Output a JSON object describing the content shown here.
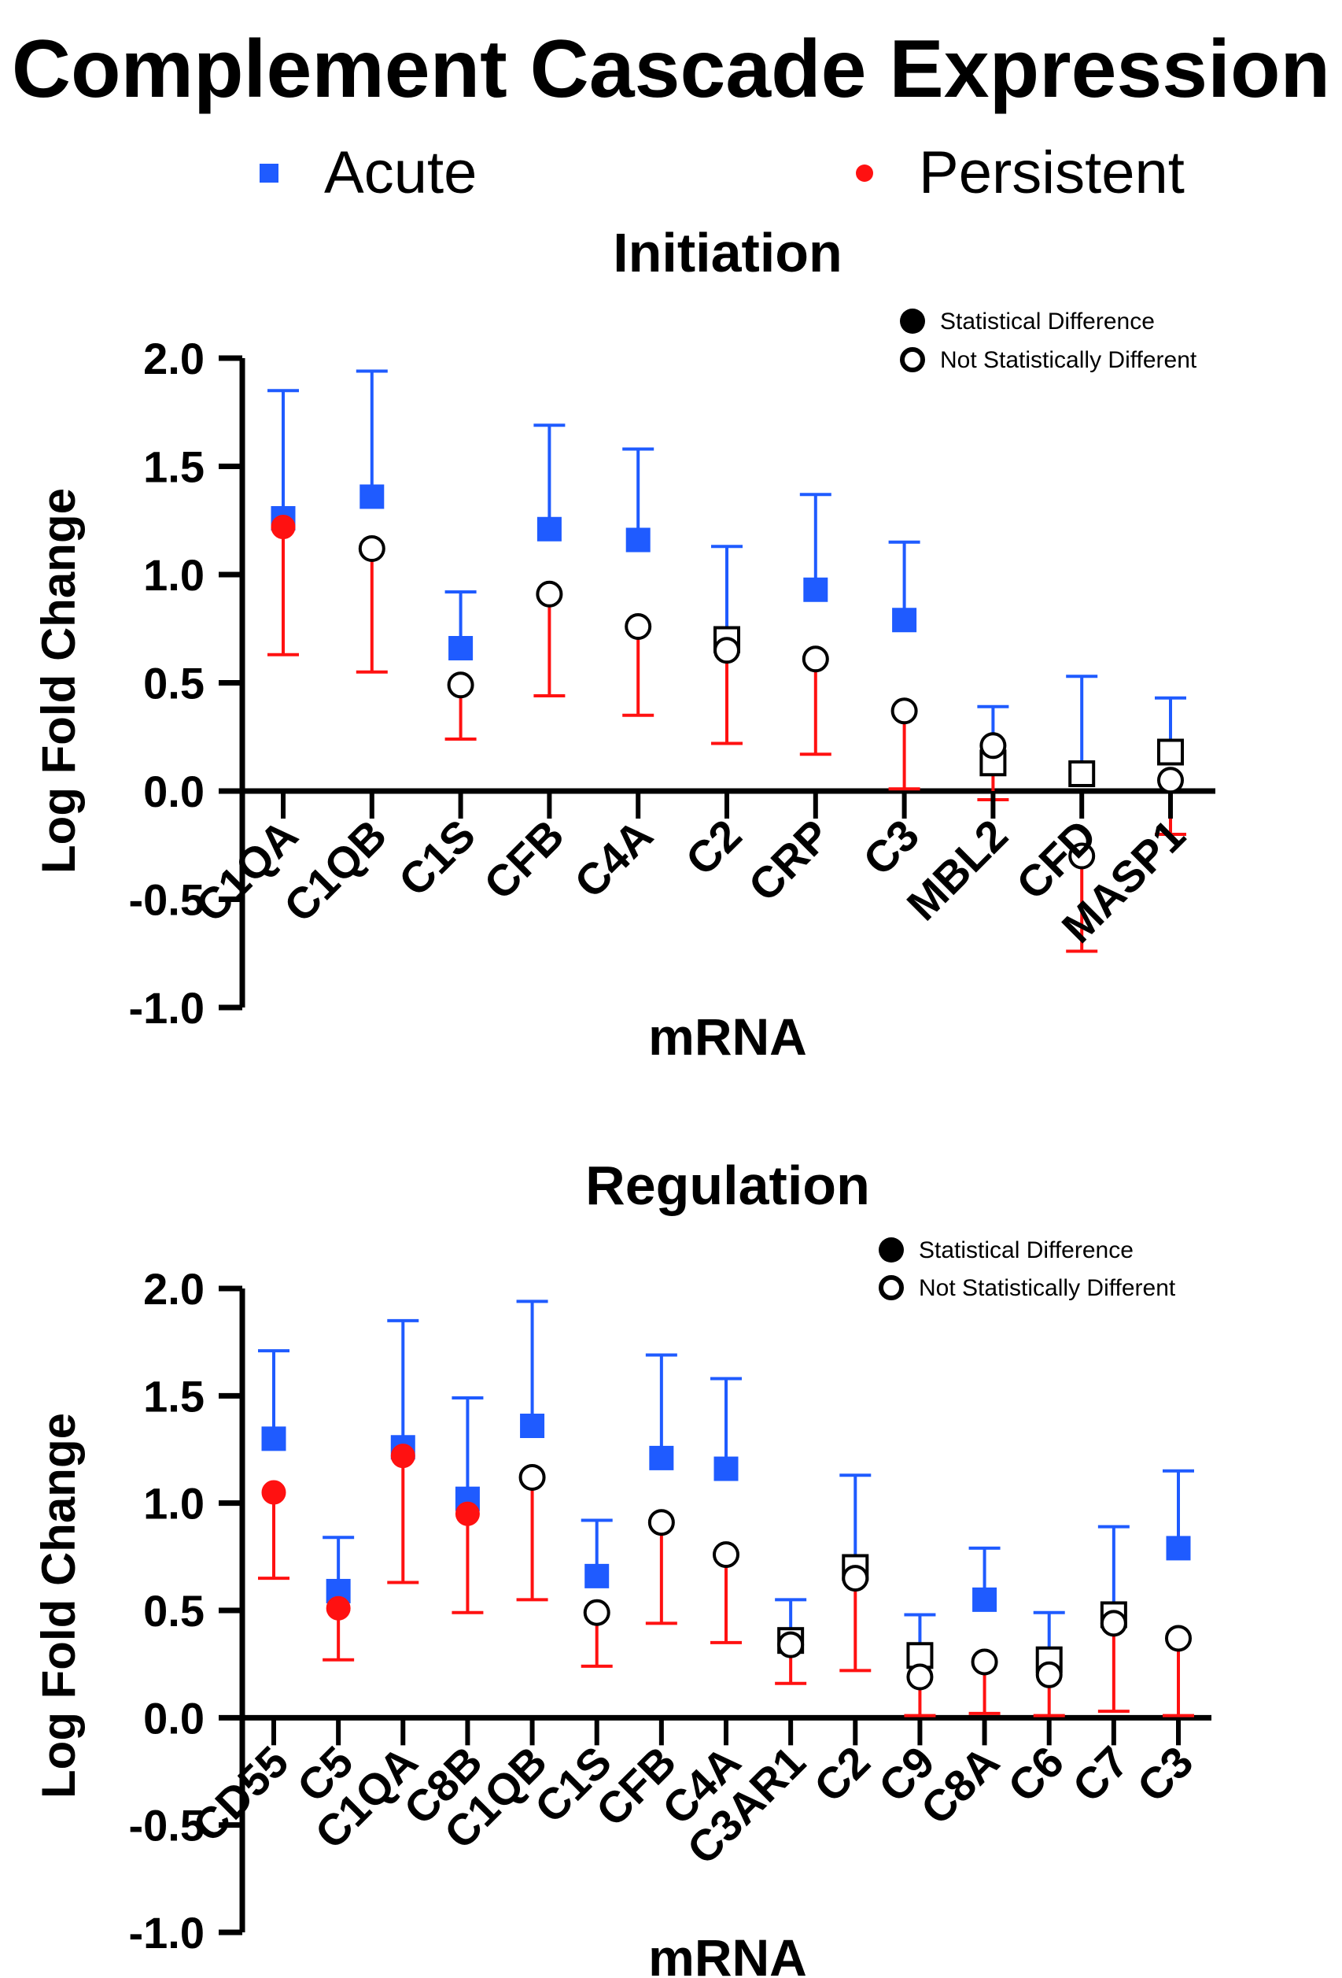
{
  "figure_title": "Complement Cascade Expression",
  "legend": {
    "acute_label": "Acute",
    "persistent_label": "Persistent",
    "acute_color": "#1f5bff",
    "persistent_color": "#ff1111",
    "acute_marker": "filled-square-icon",
    "persistent_marker": "filled-circle-icon"
  },
  "chart_data": [
    {
      "type": "scatter",
      "title": "Initiation",
      "xlabel": "mRNA",
      "ylabel": "Log Fold Change",
      "ylim": [
        -1.0,
        2.0
      ],
      "yticks": [
        2.0,
        1.5,
        1.0,
        0.5,
        0.0,
        -0.5,
        -1.0
      ],
      "ytick_labels": [
        "2.0",
        "1.5",
        "1.0",
        "0.5",
        "0.0",
        "-0.5",
        "-1.0"
      ],
      "marker_legend": {
        "filled": "Statistical Difference",
        "open": "Not Statistically Different"
      },
      "categories": [
        "C1QA",
        "C1QB",
        "C1S",
        "CFB",
        "C4A",
        "C2",
        "CRP",
        "C3",
        "MBL2",
        "CFD",
        "MASP1"
      ],
      "series": [
        {
          "name": "Acute",
          "color": "#1f5bff",
          "values": [
            1.26,
            1.36,
            0.66,
            1.21,
            1.16,
            0.7,
            0.93,
            0.79,
            0.13,
            0.08,
            0.18
          ],
          "err_upper": [
            1.85,
            1.94,
            0.92,
            1.69,
            1.58,
            1.13,
            1.37,
            1.15,
            0.39,
            0.53,
            0.43
          ],
          "significant": [
            true,
            true,
            true,
            true,
            true,
            false,
            true,
            true,
            false,
            false,
            false
          ]
        },
        {
          "name": "Persistent",
          "color": "#ff1111",
          "values": [
            1.22,
            1.12,
            0.49,
            0.91,
            0.76,
            0.65,
            0.61,
            0.37,
            0.21,
            -0.3,
            0.05
          ],
          "err_lower": [
            0.63,
            0.55,
            0.24,
            0.44,
            0.35,
            0.22,
            0.17,
            0.01,
            -0.04,
            -0.74,
            -0.2
          ],
          "significant": [
            true,
            false,
            false,
            false,
            false,
            false,
            false,
            false,
            false,
            false,
            false
          ]
        }
      ]
    },
    {
      "type": "scatter",
      "title": "Regulation",
      "xlabel": "mRNA",
      "ylabel": "Log Fold Change",
      "ylim": [
        -1.0,
        2.0
      ],
      "yticks": [
        2.0,
        1.5,
        1.0,
        0.5,
        0.0,
        -0.5,
        -1.0
      ],
      "ytick_labels": [
        "2.0",
        "1.5",
        "1.0",
        "0.5",
        "0.0",
        "-0.5",
        "-1.0"
      ],
      "marker_legend": {
        "filled": "Statistical Difference",
        "open": "Not Statistically Different"
      },
      "categories": [
        "CD55",
        "C5",
        "C1QA",
        "C8B",
        "C1QB",
        "C1S",
        "CFB",
        "C4A",
        "C3AR1",
        "C2",
        "C9",
        "C8A",
        "C6",
        "C7",
        "C3"
      ],
      "series": [
        {
          "name": "Acute",
          "color": "#1f5bff",
          "values": [
            1.3,
            0.59,
            1.26,
            1.02,
            1.36,
            0.66,
            1.21,
            1.16,
            0.36,
            0.7,
            0.29,
            0.55,
            0.27,
            0.48,
            0.79
          ],
          "err_upper": [
            1.71,
            0.84,
            1.85,
            1.49,
            1.94,
            0.92,
            1.69,
            1.58,
            0.55,
            1.13,
            0.48,
            0.79,
            0.49,
            0.89,
            1.15
          ],
          "significant": [
            true,
            true,
            true,
            true,
            true,
            true,
            true,
            true,
            false,
            false,
            false,
            true,
            false,
            false,
            true
          ]
        },
        {
          "name": "Persistent",
          "color": "#ff1111",
          "values": [
            1.05,
            0.51,
            1.22,
            0.95,
            1.12,
            0.49,
            0.91,
            0.76,
            0.34,
            0.65,
            0.19,
            0.26,
            0.2,
            0.44,
            0.37
          ],
          "err_lower": [
            0.65,
            0.27,
            0.63,
            0.49,
            0.55,
            0.24,
            0.44,
            0.35,
            0.16,
            0.22,
            0.01,
            0.02,
            0.01,
            0.03,
            0.01
          ],
          "significant": [
            true,
            true,
            true,
            true,
            false,
            false,
            false,
            false,
            false,
            false,
            false,
            false,
            false,
            false,
            false
          ]
        }
      ]
    }
  ]
}
